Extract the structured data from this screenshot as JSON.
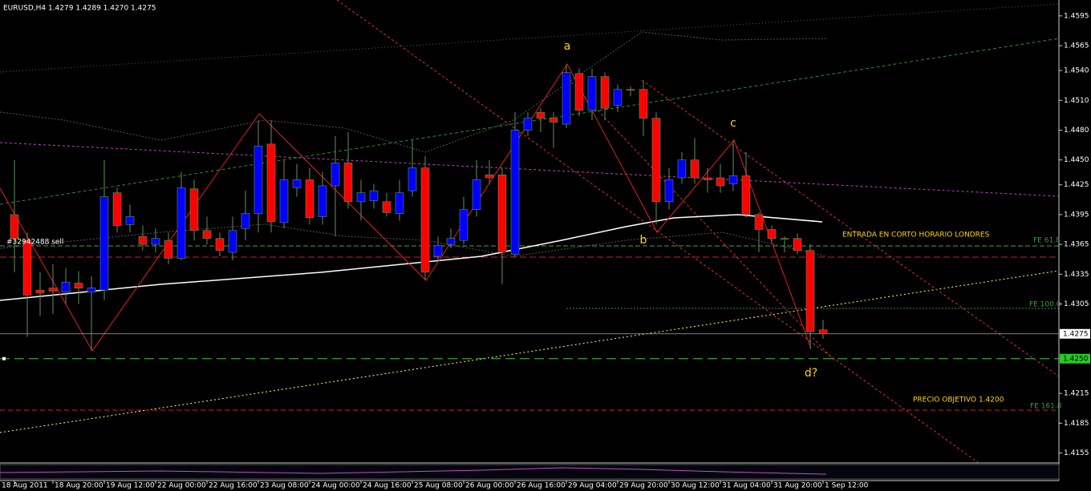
{
  "chart_data": {
    "type": "candlestick",
    "title": "EURUSD,H4  1.4279 1.4289 1.4270 1.4275",
    "categories": [
      "18 Aug 2011",
      null,
      null,
      "18 Aug 20:00",
      null,
      null,
      null,
      "19 Aug 12:00",
      null,
      null,
      null,
      "22 Aug 00:00",
      null,
      null,
      null,
      "22 Aug 16:00",
      null,
      null,
      null,
      "23 Aug 08:00",
      null,
      null,
      null,
      "24 Aug 00:00",
      null,
      null,
      null,
      "24 Aug 16:00",
      null,
      null,
      null,
      "25 Aug 08:00",
      null,
      null,
      null,
      "26 Aug 00:00",
      null,
      null,
      null,
      "26 Aug 16:00",
      null,
      null,
      null,
      "29 Aug 04:00",
      null,
      null,
      null,
      "29 Aug 20:00",
      null,
      null,
      null,
      "30 Aug 12:00",
      null,
      null,
      null,
      "31 Aug 04:00",
      null,
      null,
      null,
      "31 Aug 20:00",
      null,
      null,
      null,
      "1 Sep 12:00"
    ],
    "open": [
      1.4395,
      1.4369,
      1.4319,
      1.4321,
      1.4317,
      1.4326,
      1.4317,
      1.4319,
      1.4417,
      1.4385,
      1.4373,
      1.4365,
      1.4369,
      1.4351,
      1.4421,
      1.4379,
      1.4371,
      1.4357,
      1.4381,
      1.4396,
      1.4466,
      1.4387,
      1.4422,
      1.443,
      1.4393,
      1.4424,
      1.4447,
      1.4408,
      1.4409,
      1.4408,
      1.4396,
      1.4419,
      1.4442,
      1.4353,
      1.4365,
      1.4369,
      1.44,
      1.4435,
      1.4435,
      1.4355,
      1.448,
      1.4498,
      1.4492,
      1.4486,
      1.4537,
      1.45,
      1.4534,
      1.4505,
      1.4521,
      1.4521,
      1.4492,
      1.4408,
      1.4432,
      1.445,
      1.4432,
      1.4432,
      1.4426,
      1.4434,
      1.4395,
      1.438,
      1.4371,
      1.4371,
      1.4359,
      1.4279
    ],
    "high": [
      1.445,
      1.4377,
      1.4337,
      1.4345,
      1.4341,
      1.4338,
      1.4333,
      1.445,
      1.4422,
      1.4405,
      1.4384,
      1.4381,
      1.4377,
      1.4438,
      1.443,
      1.4393,
      1.4377,
      1.4393,
      1.4419,
      1.449,
      1.449,
      1.445,
      1.4446,
      1.4442,
      1.4438,
      1.4474,
      1.4478,
      1.443,
      1.4426,
      1.4417,
      1.443,
      1.447,
      1.4454,
      1.4373,
      1.4381,
      1.4413,
      1.445,
      1.445,
      1.4442,
      1.4498,
      1.4498,
      1.4502,
      1.4498,
      1.4546,
      1.4542,
      1.4542,
      1.4538,
      1.4526,
      1.4524,
      1.453,
      1.4498,
      1.4442,
      1.4458,
      1.4472,
      1.4442,
      1.4446,
      1.447,
      1.4458,
      1.4397,
      1.4384,
      1.4373,
      1.4376,
      1.4365,
      1.4289
    ],
    "low": [
      1.4337,
      1.4272,
      1.4293,
      1.4295,
      1.4305,
      1.4305,
      1.4258,
      1.4309,
      1.4377,
      1.4377,
      1.4359,
      1.4357,
      1.4345,
      1.4349,
      1.4369,
      1.4365,
      1.4353,
      1.4349,
      1.4369,
      1.4377,
      1.4377,
      1.4381,
      1.4413,
      1.4385,
      1.4385,
      1.4373,
      1.4401,
      1.4389,
      1.4401,
      1.4393,
      1.4389,
      1.4413,
      1.4329,
      1.4349,
      1.4361,
      1.4365,
      1.4393,
      1.4426,
      1.4325,
      1.4353,
      1.4474,
      1.4478,
      1.4462,
      1.4482,
      1.4494,
      1.449,
      1.449,
      1.4498,
      1.4514,
      1.4474,
      1.4385,
      1.44,
      1.4426,
      1.4426,
      1.4417,
      1.4417,
      1.4419,
      1.4392,
      1.4357,
      1.4367,
      1.4357,
      1.4355,
      1.426,
      1.427
    ],
    "close": [
      1.4371,
      1.4314,
      1.4316,
      1.4318,
      1.4327,
      1.4321,
      1.4321,
      1.4413,
      1.4384,
      1.4393,
      1.4365,
      1.4371,
      1.4351,
      1.4422,
      1.4379,
      1.4371,
      1.4359,
      1.4379,
      1.4396,
      1.4464,
      1.4388,
      1.443,
      1.443,
      1.4392,
      1.4424,
      1.4447,
      1.4408,
      1.4417,
      1.4419,
      1.4397,
      1.4417,
      1.4442,
      1.4337,
      1.4364,
      1.4371,
      1.44,
      1.443,
      1.4432,
      1.4357,
      1.448,
      1.4492,
      1.4492,
      1.4488,
      1.4538,
      1.45,
      1.4534,
      1.4502,
      1.4521,
      1.4521,
      1.4492,
      1.4408,
      1.443,
      1.445,
      1.4432,
      1.443,
      1.4424,
      1.4434,
      1.4395,
      1.438,
      1.4371,
      1.4371,
      1.4359,
      1.4277,
      1.4275
    ],
    "up_color": "#0000ff",
    "down_color": "#ff0000",
    "wick_color": "#5f8f5f",
    "ylim": [
      1.4145,
      1.4611
    ],
    "yticks": [
      1.4595,
      1.4565,
      {
        "value": 1.454,
        "label": "1.4540"
      },
      {
        "value": 1.451,
        "label": "1.4510"
      },
      {
        "value": 1.448,
        "label": "1.4480"
      },
      {
        "value": 1.445,
        "label": "1.4450"
      },
      1.4425,
      1.4395,
      1.4365,
      1.4335,
      1.4305,
      1.4215,
      1.4185,
      1.4155
    ],
    "grid": false,
    "current_price": 1.4275,
    "target_level": {
      "value": 1.425,
      "label": "1.4250"
    },
    "order_label": "#32942488 sell",
    "wave_labels": [
      "a",
      "b",
      "c",
      "d?"
    ],
    "notes": [
      "ENTRADA EN CORTO HORARIO LONDRES",
      "PRECIO OBJETIVO 1.4200"
    ],
    "fibo_labels": [
      "FE 61.8",
      "FE 100.0",
      "FE 161.8"
    ]
  }
}
